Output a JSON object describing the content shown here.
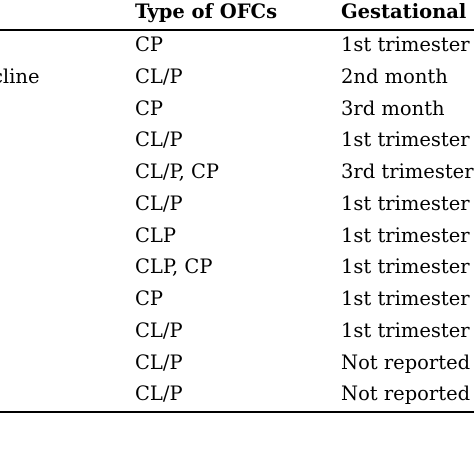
{
  "table": {
    "headers": {
      "ofc_type": "Type of OFCs",
      "gestational": "Gestational"
    },
    "rows": [
      {
        "drug": "",
        "ofc_type": "CP",
        "gestational": "1st trimester"
      },
      {
        "drug": "cline",
        "ofc_type": "CL/P",
        "gestational": "2nd month"
      },
      {
        "drug": "",
        "ofc_type": "CP",
        "gestational": "3rd month"
      },
      {
        "drug": "",
        "ofc_type": "CL/P",
        "gestational": "1st trimester"
      },
      {
        "drug": "",
        "ofc_type": "CL/P, CP",
        "gestational": "3rd trimester"
      },
      {
        "drug": "",
        "ofc_type": "CL/P",
        "gestational": "1st trimester"
      },
      {
        "drug": "",
        "ofc_type": "CLP",
        "gestational": "1st trimester"
      },
      {
        "drug": "",
        "ofc_type": "CLP, CP",
        "gestational": "1st trimester"
      },
      {
        "drug": "",
        "ofc_type": "CP",
        "gestational": "1st trimester"
      },
      {
        "drug": "",
        "ofc_type": "CL/P",
        "gestational": "1st trimester"
      },
      {
        "drug": "",
        "ofc_type": "CL/P",
        "gestational": "Not reported"
      },
      {
        "drug": "",
        "ofc_type": "CL/P",
        "gestational": "Not reported"
      }
    ]
  }
}
